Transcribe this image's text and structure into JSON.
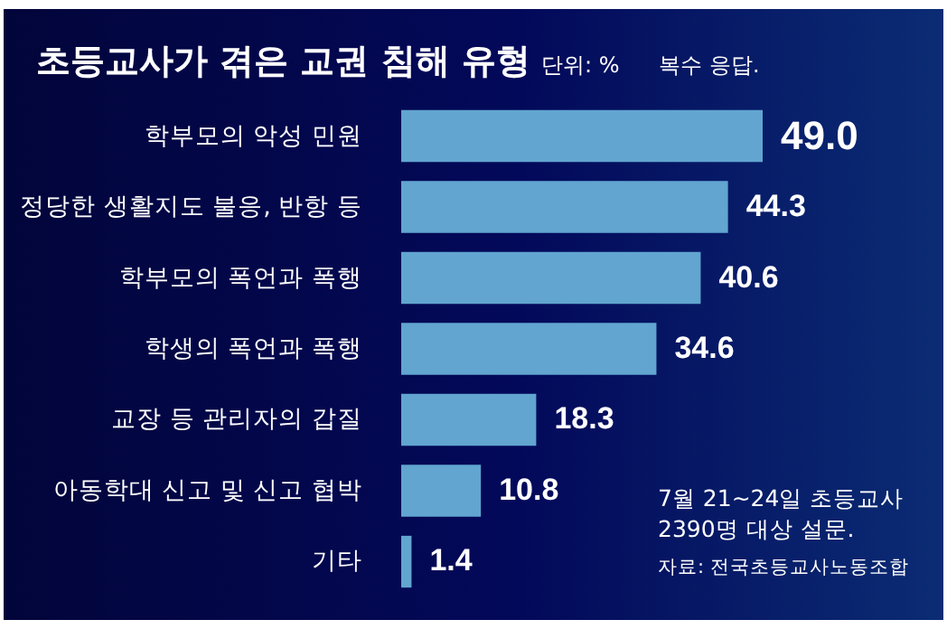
{
  "chart_data": {
    "type": "bar",
    "orientation": "horizontal",
    "title": "초등교사가 겪은 교권 침해 유형",
    "subtitle": "단위: %",
    "categories": [
      "학부모의 악성 민원",
      "정당한 생활지도 불응, 반항 등",
      "학부모의 폭언과 폭행",
      "학생의 폭언과 폭행",
      "교장 등 관리자의 갑질",
      "아동학대 신고 및 신고 협박",
      "기타"
    ],
    "values": [
      49.0,
      44.3,
      40.6,
      34.6,
      18.3,
      10.8,
      1.4
    ],
    "color": "#61a5d0",
    "value_labels": [
      "49.0",
      "44.3",
      "40.6",
      "34.6",
      "18.3",
      "10.8",
      "1.4"
    ],
    "annotations": [
      "복수 응답.",
      "7월 21~24일 초등교사 2390명 대상 설문.",
      "자료: 전국초등교사노동조합"
    ]
  }
}
